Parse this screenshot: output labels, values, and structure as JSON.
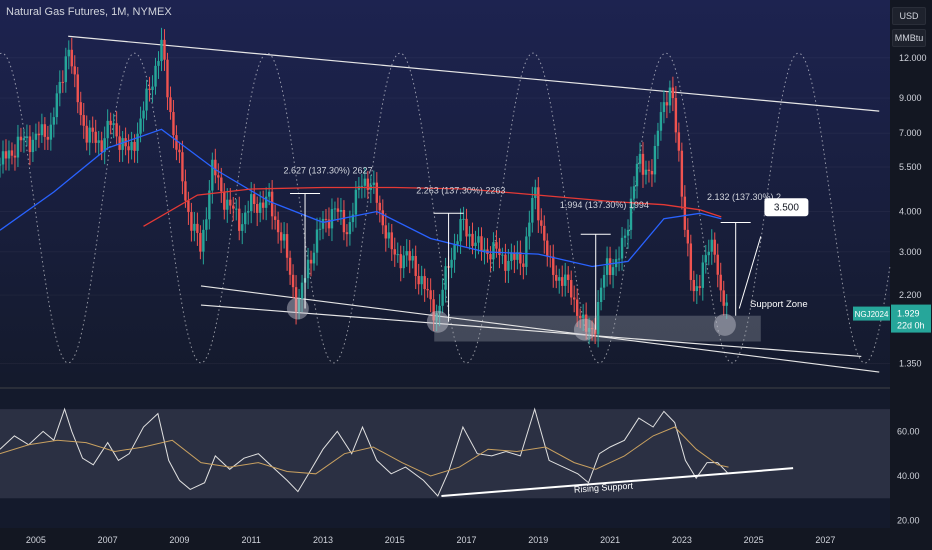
{
  "title": "Natural Gas Futures, 1M, NYMEX",
  "currency": "USD",
  "unit": "MMBtu",
  "price_tag": {
    "symbol": "NGJ2024",
    "price": "1.929",
    "countdown": "22d 0h"
  },
  "callout": "3.500",
  "annotations": {
    "a1": "2.627 (137.30%) 2627",
    "a2": "2.263 (137.30%) 2263",
    "a3": "1.994 (137.30%) 1994",
    "a4": "2.132 (137.30%) 2",
    "support_zone": "Support Zone",
    "rising_support": "Rising Support"
  },
  "colors": {
    "background": "#131a2e",
    "bull": "#26a69a",
    "bear": "#ef5350",
    "ma_blue": "#2962ff",
    "ma_red": "#e53935",
    "rsi": "#e0e0e0",
    "rsi_ma": "#c8a060",
    "lines": "#e6e6e6",
    "zone": "#9aa0aa"
  },
  "chart_data": [
    {
      "type": "candlestick",
      "title": "Natural Gas Futures, 1M, NYMEX",
      "scale": "log",
      "ylim": [
        1.2,
        15.5
      ],
      "y_ticks": [
        "12.000",
        "9.000",
        "7.000",
        "5.500",
        "4.000",
        "3.000",
        "2.200",
        "1.350"
      ],
      "y_tick_values": [
        12,
        9,
        7,
        5.5,
        4,
        3,
        2.2,
        1.35
      ],
      "x_ticks": [
        "2005",
        "2007",
        "2009",
        "2011",
        "2013",
        "2015",
        "2017",
        "2019",
        "2021",
        "2023",
        "2025",
        "2027"
      ],
      "xlim": [
        2004.0,
        2028.8
      ],
      "anchors": [
        [
          2004.0,
          5.6
        ],
        [
          2004.5,
          6.5
        ],
        [
          2005.0,
          6.8
        ],
        [
          2005.4,
          7.2
        ],
        [
          2005.7,
          10.0
        ],
        [
          2005.9,
          13.5
        ],
        [
          2006.1,
          9.5
        ],
        [
          2006.4,
          7.0
        ],
        [
          2006.8,
          6.5
        ],
        [
          2007.1,
          7.5
        ],
        [
          2007.6,
          6.0
        ],
        [
          2007.9,
          7.5
        ],
        [
          2008.2,
          10.0
        ],
        [
          2008.5,
          13.0
        ],
        [
          2008.8,
          7.5
        ],
        [
          2009.2,
          4.2
        ],
        [
          2009.6,
          3.0
        ],
        [
          2009.9,
          5.5
        ],
        [
          2010.3,
          4.3
        ],
        [
          2010.7,
          3.7
        ],
        [
          2011.0,
          4.2
        ],
        [
          2011.5,
          4.3
        ],
        [
          2011.9,
          3.2
        ],
        [
          2012.3,
          2.0
        ],
        [
          2012.6,
          2.8
        ],
        [
          2012.9,
          3.5
        ],
        [
          2013.3,
          4.1
        ],
        [
          2013.7,
          3.5
        ],
        [
          2014.1,
          5.2
        ],
        [
          2014.5,
          4.4
        ],
        [
          2014.9,
          3.0
        ],
        [
          2015.5,
          2.8
        ],
        [
          2015.9,
          2.2
        ],
        [
          2016.2,
          1.9
        ],
        [
          2016.5,
          2.8
        ],
        [
          2016.9,
          3.7
        ],
        [
          2017.3,
          3.1
        ],
        [
          2017.8,
          3.0
        ],
        [
          2018.2,
          2.8
        ],
        [
          2018.6,
          2.9
        ],
        [
          2018.9,
          4.7
        ],
        [
          2019.3,
          2.7
        ],
        [
          2019.9,
          2.3
        ],
        [
          2020.3,
          1.7
        ],
        [
          2020.6,
          1.8
        ],
        [
          2020.9,
          2.8
        ],
        [
          2021.2,
          2.7
        ],
        [
          2021.5,
          3.8
        ],
        [
          2021.8,
          5.8
        ],
        [
          2022.2,
          5.2
        ],
        [
          2022.4,
          8.5
        ],
        [
          2022.7,
          9.3
        ],
        [
          2022.9,
          6.5
        ],
        [
          2023.1,
          3.4
        ],
        [
          2023.3,
          2.2
        ],
        [
          2023.6,
          2.7
        ],
        [
          2023.9,
          3.3
        ],
        [
          2024.1,
          2.1
        ],
        [
          2024.3,
          1.93
        ]
      ],
      "overlays": {
        "ma_blue": [
          [
            2004.0,
            3.5
          ],
          [
            2005.5,
            4.6
          ],
          [
            2007.0,
            6.3
          ],
          [
            2008.5,
            7.2
          ],
          [
            2010.0,
            5.4
          ],
          [
            2011.5,
            4.3
          ],
          [
            2013.0,
            3.7
          ],
          [
            2014.5,
            4.0
          ],
          [
            2016.0,
            3.3
          ],
          [
            2017.5,
            3.0
          ],
          [
            2019.0,
            2.95
          ],
          [
            2020.5,
            2.7
          ],
          [
            2021.5,
            2.8
          ],
          [
            2022.5,
            3.8
          ],
          [
            2023.5,
            3.95
          ],
          [
            2024.1,
            3.8
          ]
        ],
        "ma_red": [
          [
            2008.0,
            3.6
          ],
          [
            2009.5,
            4.5
          ],
          [
            2011.0,
            4.7
          ],
          [
            2013.0,
            4.75
          ],
          [
            2015.0,
            4.75
          ],
          [
            2017.0,
            4.7
          ],
          [
            2019.0,
            4.5
          ],
          [
            2021.0,
            4.3
          ],
          [
            2022.5,
            4.2
          ],
          [
            2023.5,
            4.05
          ],
          [
            2024.1,
            3.85
          ]
        ],
        "channel_upper": [
          [
            2005.9,
            14.0
          ],
          [
            2028.5,
            8.2
          ]
        ],
        "channel_lower": [
          [
            2009.6,
            2.35
          ],
          [
            2028.5,
            1.27
          ]
        ],
        "channel_mid": [
          [
            2009.6,
            2.05
          ],
          [
            2028.0,
            1.42
          ]
        ],
        "support_zone": {
          "x": [
            2016.1,
            2025.2
          ],
          "y": [
            1.58,
            1.9
          ]
        }
      }
    },
    {
      "type": "line",
      "name": "RSI",
      "ylim": [
        18,
        75
      ],
      "y_ticks": [
        "60.00",
        "40.00",
        "20.00"
      ],
      "y_tick_values": [
        60,
        40,
        20
      ],
      "band": [
        30,
        70
      ],
      "xlim": [
        2004.0,
        2028.8
      ],
      "rsi": [
        [
          2004.0,
          52
        ],
        [
          2004.4,
          58
        ],
        [
          2004.8,
          54
        ],
        [
          2005.2,
          60
        ],
        [
          2005.5,
          56
        ],
        [
          2005.8,
          70
        ],
        [
          2006.0,
          60
        ],
        [
          2006.3,
          48
        ],
        [
          2006.6,
          45
        ],
        [
          2007.0,
          55
        ],
        [
          2007.3,
          47
        ],
        [
          2007.6,
          50
        ],
        [
          2008.0,
          62
        ],
        [
          2008.4,
          68
        ],
        [
          2008.7,
          47
        ],
        [
          2009.0,
          38
        ],
        [
          2009.3,
          34
        ],
        [
          2009.7,
          37
        ],
        [
          2010.0,
          49
        ],
        [
          2010.4,
          43
        ],
        [
          2010.8,
          48
        ],
        [
          2011.2,
          50
        ],
        [
          2011.6,
          44
        ],
        [
          2012.0,
          38
        ],
        [
          2012.3,
          33
        ],
        [
          2012.6,
          41
        ],
        [
          2013.0,
          52
        ],
        [
          2013.4,
          60
        ],
        [
          2013.8,
          50
        ],
        [
          2014.1,
          62
        ],
        [
          2014.5,
          47
        ],
        [
          2014.9,
          41
        ],
        [
          2015.3,
          44
        ],
        [
          2015.8,
          38
        ],
        [
          2016.2,
          31
        ],
        [
          2016.5,
          42
        ],
        [
          2016.9,
          62
        ],
        [
          2017.3,
          50
        ],
        [
          2017.7,
          49
        ],
        [
          2018.1,
          51
        ],
        [
          2018.5,
          49
        ],
        [
          2018.9,
          70
        ],
        [
          2019.3,
          47
        ],
        [
          2019.7,
          44
        ],
        [
          2020.1,
          41
        ],
        [
          2020.4,
          37
        ],
        [
          2020.7,
          50
        ],
        [
          2021.0,
          53
        ],
        [
          2021.4,
          56
        ],
        [
          2021.8,
          66
        ],
        [
          2022.2,
          62
        ],
        [
          2022.5,
          69
        ],
        [
          2022.8,
          64
        ],
        [
          2023.1,
          47
        ],
        [
          2023.4,
          39
        ],
        [
          2023.7,
          46
        ],
        [
          2024.0,
          46
        ],
        [
          2024.3,
          41
        ]
      ],
      "rsi_ma": [
        [
          2004.0,
          50
        ],
        [
          2004.8,
          54
        ],
        [
          2005.6,
          56
        ],
        [
          2006.4,
          55
        ],
        [
          2007.2,
          51
        ],
        [
          2008.0,
          53
        ],
        [
          2008.8,
          56
        ],
        [
          2009.6,
          46
        ],
        [
          2010.4,
          44
        ],
        [
          2011.2,
          46
        ],
        [
          2012.0,
          42
        ],
        [
          2012.8,
          41
        ],
        [
          2013.6,
          50
        ],
        [
          2014.4,
          53
        ],
        [
          2015.2,
          46
        ],
        [
          2016.0,
          40
        ],
        [
          2016.8,
          44
        ],
        [
          2017.6,
          52
        ],
        [
          2018.4,
          51
        ],
        [
          2019.2,
          53
        ],
        [
          2020.0,
          46
        ],
        [
          2020.6,
          43
        ],
        [
          2021.4,
          49
        ],
        [
          2022.2,
          58
        ],
        [
          2022.8,
          62
        ],
        [
          2023.4,
          52
        ],
        [
          2024.0,
          45
        ],
        [
          2024.3,
          44
        ]
      ],
      "rising_support": [
        [
          2016.3,
          31
        ],
        [
          2026.1,
          43.5
        ]
      ]
    }
  ]
}
